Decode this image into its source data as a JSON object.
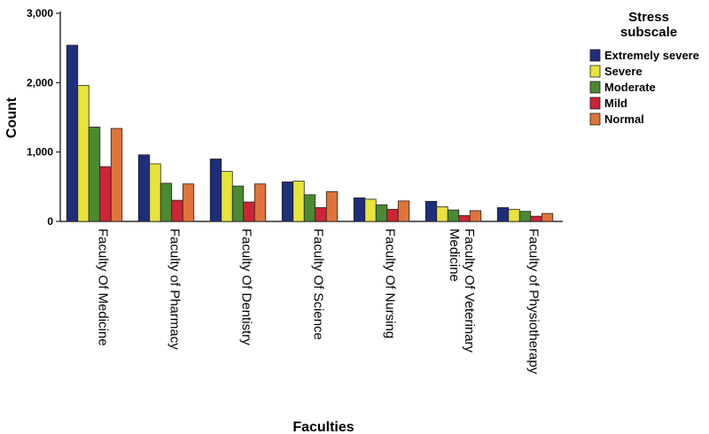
{
  "chart_data": {
    "type": "bar",
    "xlabel": "Faculties",
    "ylabel": "Count",
    "ylim": [
      0,
      3000
    ],
    "yticks": [
      0,
      1000,
      2000,
      3000
    ],
    "ytick_labels": [
      "0",
      "1,000",
      "2,000",
      "3,000"
    ],
    "grid": false,
    "legend_title_lines": [
      "Stress",
      "subscale"
    ],
    "legend_position": "top-right",
    "categories": [
      [
        "Faculty Of Medicine"
      ],
      [
        "Faculty of Pharmacy"
      ],
      [
        "Faculty Of Dentistry"
      ],
      [
        "Faculty Of Science"
      ],
      [
        "Faculty Of Nursing"
      ],
      [
        "Faculty Of Veterinary",
        "Medicine"
      ],
      [
        "Faculty of Physiotherapy"
      ]
    ],
    "series": [
      {
        "name": "Extremely severe",
        "color": "#1f2e7a",
        "values": [
          2540,
          960,
          900,
          570,
          340,
          290,
          200
        ]
      },
      {
        "name": "Severe",
        "color": "#e8e43a",
        "values": [
          1960,
          830,
          720,
          580,
          320,
          210,
          175
        ]
      },
      {
        "name": "Moderate",
        "color": "#4a8a32",
        "values": [
          1360,
          550,
          510,
          385,
          240,
          165,
          145
        ]
      },
      {
        "name": "Mild",
        "color": "#cf2437",
        "values": [
          790,
          305,
          280,
          200,
          175,
          85,
          75
        ]
      },
      {
        "name": "Normal",
        "color": "#e0733a",
        "values": [
          1340,
          540,
          540,
          430,
          295,
          155,
          115
        ]
      }
    ]
  }
}
